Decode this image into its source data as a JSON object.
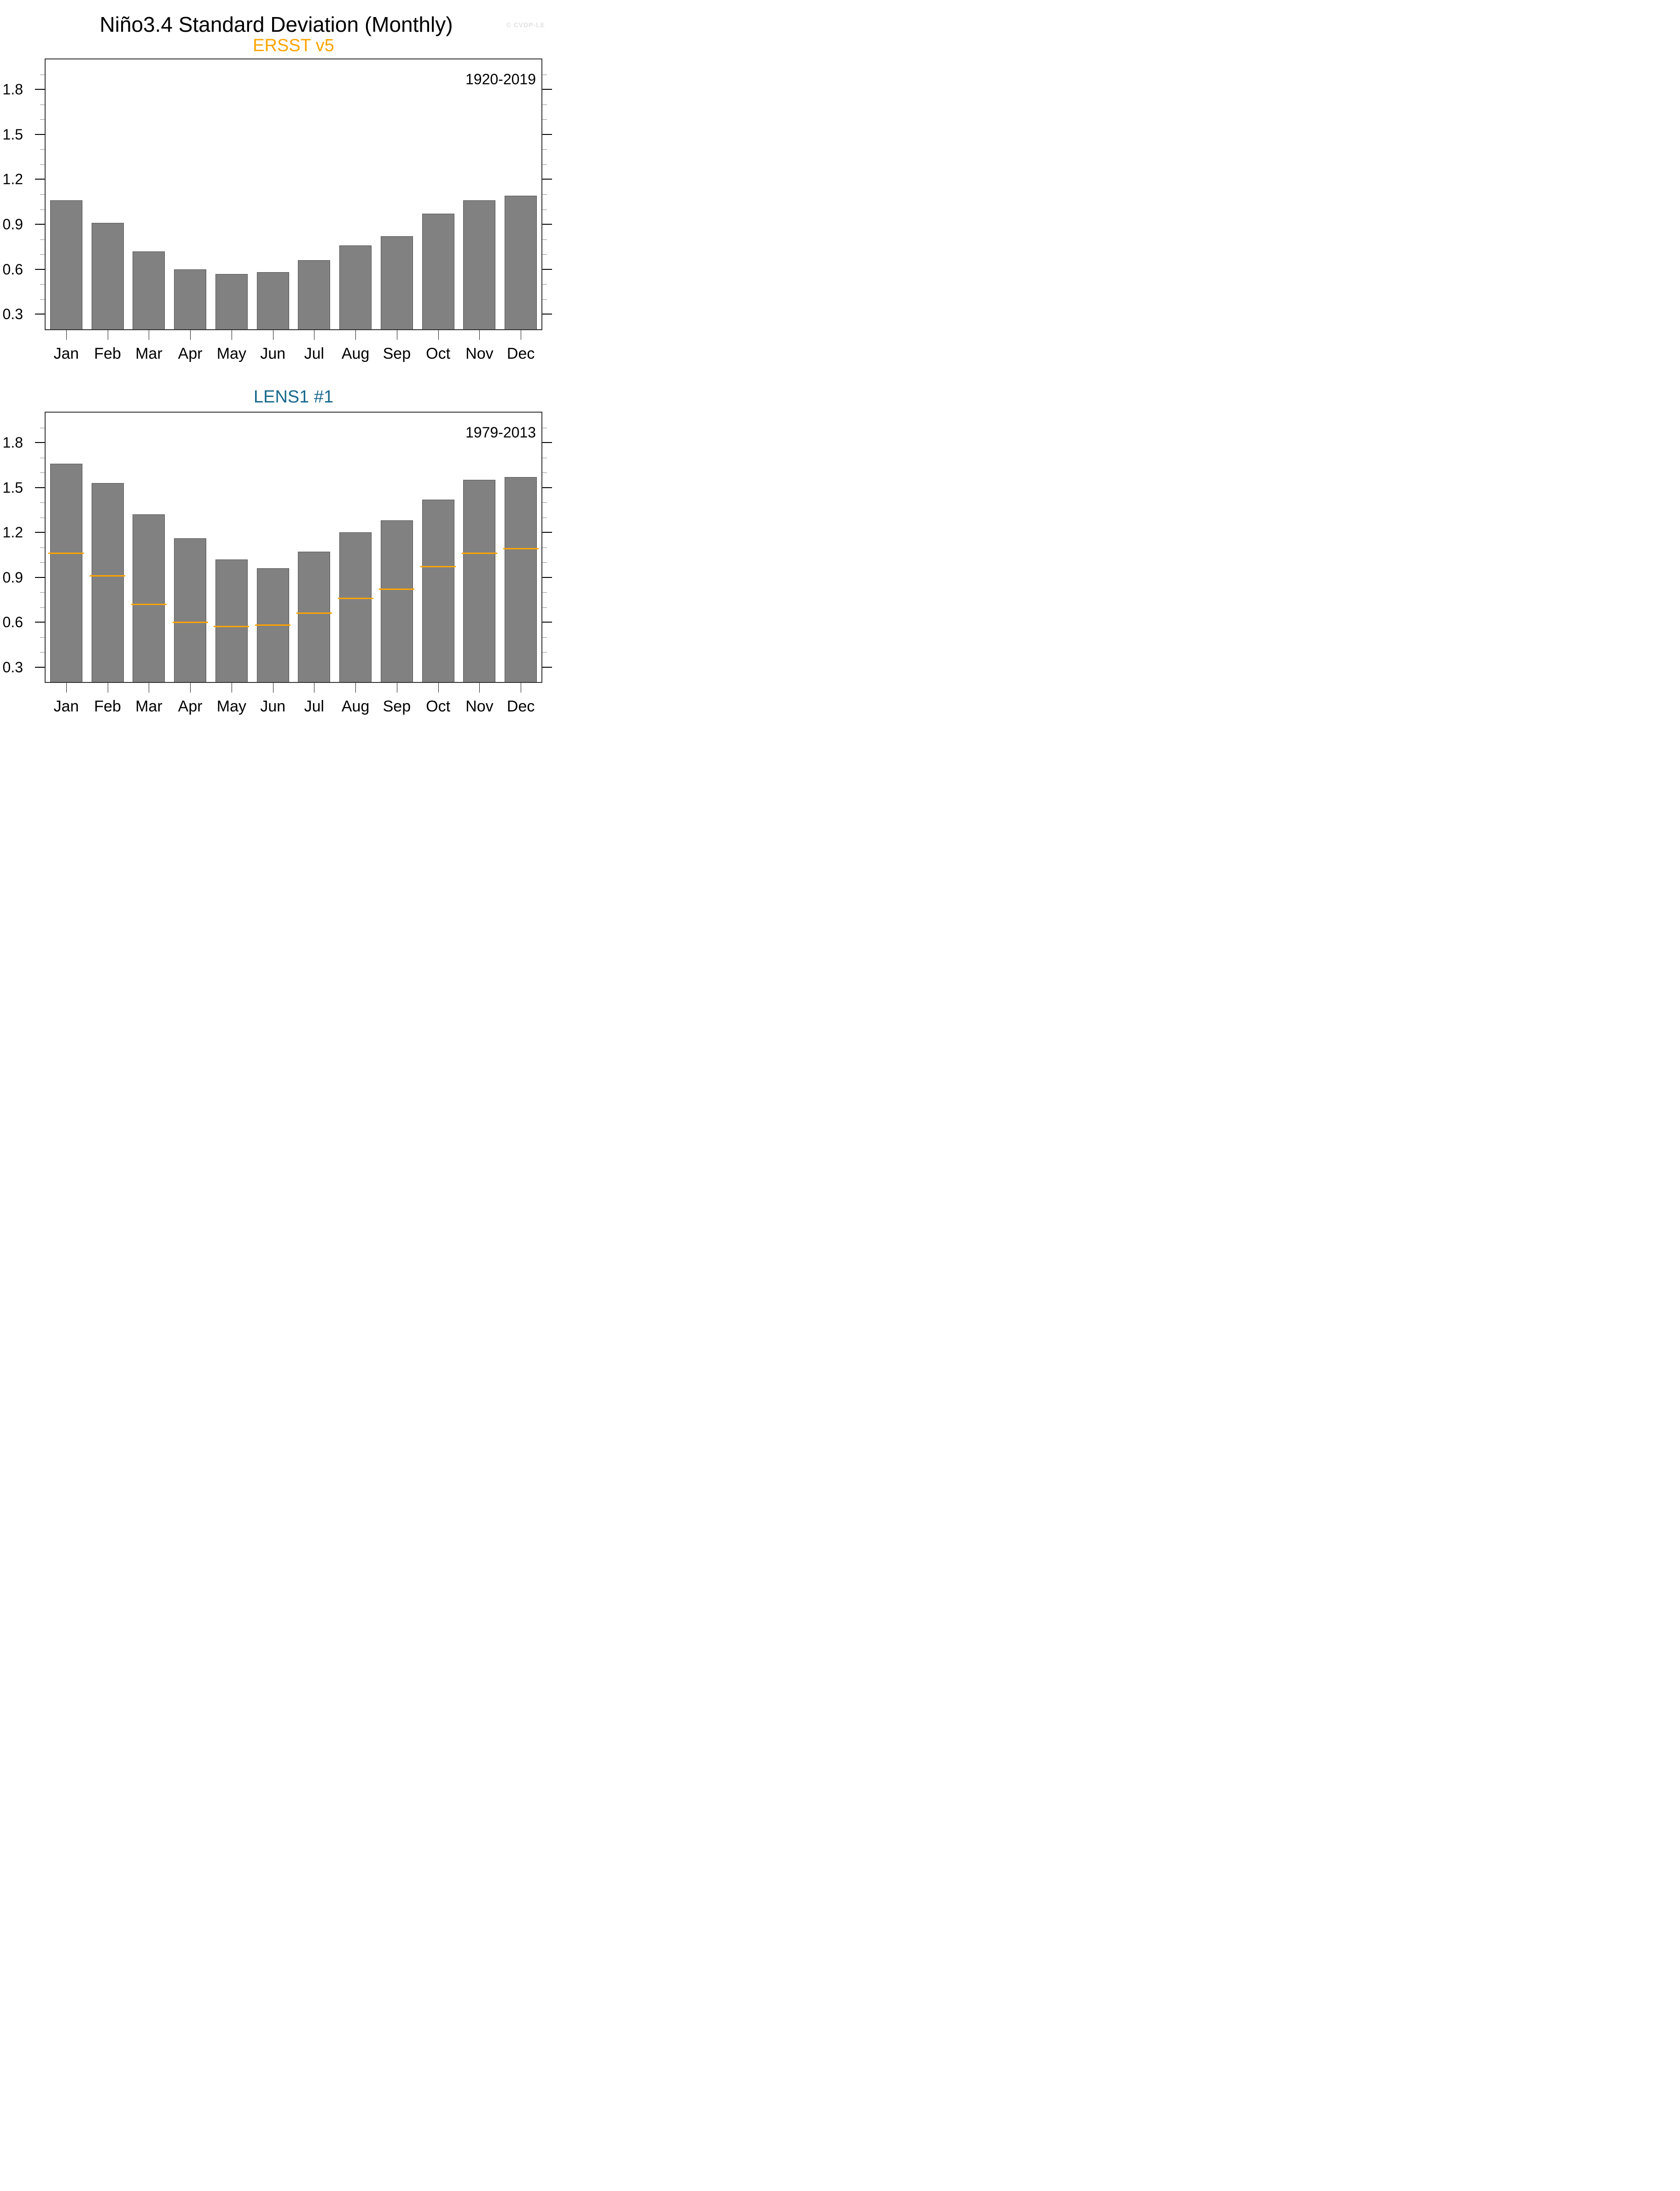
{
  "page": {
    "title": "Niño3.4 Standard Deviation (Monthly)",
    "watermark": "© CVDP-LE"
  },
  "colors": {
    "bar_fill": "#818181",
    "bar_outline": "#4f4f4f",
    "frame": "#333333",
    "major_tick": "#000000",
    "minor_tick": "#8C8C8C",
    "obs_overlay": "#FFA400",
    "ersst_title": "#FFA400",
    "lens_title": "#17688D",
    "watermark": "#E0E0E0"
  },
  "chart_data": [
    {
      "id": "ersst",
      "type": "bar",
      "title": "ERSST v5",
      "title_color": "#FFA400",
      "period": "1920-2019",
      "categories": [
        "Jan",
        "Feb",
        "Mar",
        "Apr",
        "May",
        "Jun",
        "Jul",
        "Aug",
        "Sep",
        "Oct",
        "Nov",
        "Dec"
      ],
      "values": [
        1.06,
        0.91,
        0.72,
        0.6,
        0.57,
        0.58,
        0.66,
        0.76,
        0.82,
        0.97,
        1.06,
        1.09
      ],
      "bar_color": "#818181",
      "ylim": [
        0.2,
        2.0
      ],
      "yticks_major": [
        0.3,
        0.6,
        0.9,
        1.2,
        1.5,
        1.8
      ],
      "ytick_minor_step": 0.1,
      "grid": false,
      "xlabel": "",
      "ylabel": ""
    },
    {
      "id": "lens1",
      "type": "bar",
      "title": "LENS1 #1",
      "title_color": "#17688D",
      "period": "1979-2013",
      "categories": [
        "Jan",
        "Feb",
        "Mar",
        "Apr",
        "May",
        "Jun",
        "Jul",
        "Aug",
        "Sep",
        "Oct",
        "Nov",
        "Dec"
      ],
      "values": [
        1.66,
        1.53,
        1.32,
        1.16,
        1.02,
        0.96,
        1.07,
        1.2,
        1.28,
        1.42,
        1.55,
        1.57
      ],
      "bar_color": "#818181",
      "overlay_values": [
        1.06,
        0.91,
        0.72,
        0.6,
        0.57,
        0.58,
        0.66,
        0.76,
        0.82,
        0.97,
        1.06,
        1.09
      ],
      "overlay_color": "#FFA400",
      "ylim": [
        0.2,
        2.0
      ],
      "yticks_major": [
        0.3,
        0.6,
        0.9,
        1.2,
        1.5,
        1.8
      ],
      "ytick_minor_step": 0.1,
      "grid": false,
      "xlabel": "",
      "ylabel": ""
    }
  ]
}
